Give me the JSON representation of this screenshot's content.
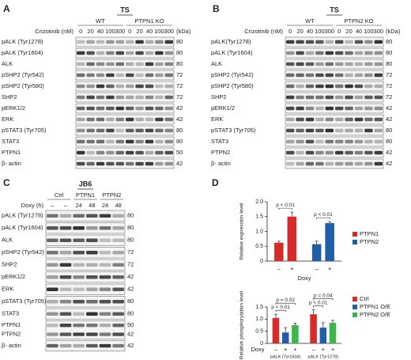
{
  "panels": [
    {
      "letter": "A",
      "title": "TS",
      "treatment": "Crizotinib (nM)",
      "groups": [
        "WT",
        "PTPN1 KO"
      ],
      "lanes": [
        "0",
        "20",
        "40",
        "100",
        "300",
        "0",
        "20",
        "40",
        "100",
        "300"
      ],
      "unit": "(kDa)",
      "rows": [
        {
          "labels": [
            "pALK (Tyr1278)"
          ],
          "kda": [
            "80"
          ]
        },
        {
          "labels": [
            "pALK (Tyr1604)"
          ],
          "kda": [
            "80"
          ]
        },
        {
          "labels": [
            "ALK"
          ],
          "kda": [
            "80"
          ]
        },
        {
          "labels": [
            "pSHP2 (Tyr542)"
          ],
          "kda": [
            "72"
          ]
        },
        {
          "labels": [
            "pSHP2 (Tyr580)"
          ],
          "kda": [
            "72"
          ]
        },
        {
          "labels": [
            "SHP2"
          ],
          "kda": [
            "72"
          ]
        },
        {
          "labels": [
            "pERK1/2"
          ],
          "kda": [
            "42"
          ]
        },
        {
          "labels": [
            "ERK"
          ],
          "kda": [
            "42"
          ]
        },
        {
          "labels": [
            "pSTAT3 (Tyr705)"
          ],
          "kda": [
            "80"
          ]
        },
        {
          "labels": [
            "STAT3"
          ],
          "kda": [
            "80"
          ]
        },
        {
          "labels": [
            "PTPN1"
          ],
          "kda": [
            "50"
          ]
        },
        {
          "labels": [
            "β- actin"
          ],
          "kda": [
            "42"
          ]
        }
      ]
    },
    {
      "letter": "B",
      "title": "TS",
      "treatment": "Crizotinib (nM)",
      "groups": [
        "WT",
        "PTPN2 KO"
      ],
      "lanes": [
        "0",
        "20",
        "40",
        "100",
        "300",
        "0",
        "20",
        "40",
        "100",
        "300"
      ],
      "unit": "(kDa)",
      "rows": [
        {
          "labels": [
            "pALK(Tyr1278)"
          ],
          "kda": [
            "80"
          ]
        },
        {
          "labels": [
            "pALK (Tyr1604)"
          ],
          "kda": [
            "80"
          ]
        },
        {
          "labels": [
            "ALK"
          ],
          "kda": [
            "80"
          ]
        },
        {
          "labels": [
            "pSHP2 (Tyr542)"
          ],
          "kda": [
            "72"
          ]
        },
        {
          "labels": [
            "pSHP2 (Tyr580)"
          ],
          "kda": [
            "72"
          ]
        },
        {
          "labels": [
            "SHP2"
          ],
          "kda": [
            "72"
          ]
        },
        {
          "labels": [
            "pERK1/2"
          ],
          "kda": [
            "42"
          ]
        },
        {
          "labels": [
            "ERK"
          ],
          "kda": [
            "42"
          ]
        },
        {
          "labels": [
            "pSTAT3 (Tyr705)"
          ],
          "kda": [
            "80"
          ]
        },
        {
          "labels": [
            "STAT3"
          ],
          "kda": [
            "80"
          ]
        },
        {
          "labels": [
            "PTPN2"
          ],
          "kda": [
            "42"
          ]
        },
        {
          "labels": [
            "β- actin"
          ],
          "kda": [
            "42"
          ]
        }
      ]
    },
    {
      "letter": "C",
      "title": "JB6",
      "treatment": "Doxy (h)",
      "groups": [
        "Ctrl",
        "PTPN1",
        "PTPN2"
      ],
      "lanes": [
        "–",
        "–",
        "24",
        "48",
        "24",
        "48"
      ],
      "rows": [
        {
          "labels": [
            "pALK (Tyr1278)"
          ],
          "kda": [
            "80"
          ]
        },
        {
          "labels": [
            "pALK (Tyr1604)"
          ],
          "kda": [
            "80"
          ]
        },
        {
          "labels": [
            "ALK"
          ],
          "kda": [
            "80"
          ]
        },
        {
          "labels": [
            "pSHP2 (Tyr542)"
          ],
          "kda": [
            "72"
          ]
        },
        {
          "labels": [
            "SHP2"
          ],
          "kda": [
            "72"
          ]
        },
        {
          "labels": [
            "pERK1/2"
          ],
          "kda": [
            "42"
          ]
        },
        {
          "labels": [
            "ERK"
          ],
          "kda": [
            "42"
          ]
        },
        {
          "labels": [
            "pSTAT3 (Tyr705)"
          ],
          "kda": [
            "80"
          ]
        },
        {
          "labels": [
            "STAT3"
          ],
          "kda": [
            "80"
          ]
        },
        {
          "labels": [
            "PTPN1",
            "PTPN2"
          ],
          "kda": [
            "50",
            "42"
          ]
        },
        {
          "labels": [
            "β- actin"
          ],
          "kda": [
            "42"
          ]
        }
      ]
    }
  ],
  "panel_d": {
    "letter": "D"
  },
  "chart_data": [
    {
      "type": "bar",
      "y_label": "Relative expression level",
      "x_label": "Doxy",
      "categories": [
        "–",
        "+",
        "–",
        "+"
      ],
      "ylim": [
        0,
        2
      ],
      "yticks": [
        0,
        0.5,
        {
          "value": 1,
          "label": "1.0"
        },
        1.5,
        {
          "value": 2,
          "label": "2.0"
        }
      ],
      "series": [
        {
          "name": "PTPN1",
          "color": "#d62b2b",
          "values": [
            0.62,
            1.5,
            null,
            null
          ],
          "errors": [
            0.05,
            0.15,
            null,
            null
          ]
        },
        {
          "name": "PTPN2",
          "color": "#1f5fa8",
          "values": [
            null,
            null,
            0.57,
            1.28
          ],
          "errors": [
            null,
            null,
            0.1,
            0.05
          ]
        }
      ],
      "annotations": [
        "p < 0.01",
        "p < 0.01"
      ]
    },
    {
      "type": "bar",
      "y_label": "Relative phosphorylation level",
      "x_label": "Doxy",
      "categories": [
        "–",
        "+",
        "+",
        "–",
        "+",
        "+"
      ],
      "group_labels": [
        "pALK (Tyr1604)",
        "pALK (Tyr1278)"
      ],
      "ylim": [
        0,
        1.5
      ],
      "yticks": [
        0,
        0.5,
        {
          "value": 1,
          "label": "1.0"
        },
        1.5
      ],
      "series": [
        {
          "name": "Ctrl",
          "color": "#d62b2b",
          "values": [
            1.05,
            null,
            null,
            1.2,
            null,
            null
          ],
          "errors": [
            0.15,
            null,
            null,
            0.18,
            null,
            null
          ]
        },
        {
          "name": "PTPN1 O/E",
          "color": "#1f5fa8",
          "values": [
            null,
            0.45,
            null,
            null,
            0.65,
            null
          ],
          "errors": [
            null,
            0.2,
            null,
            null,
            0.2,
            null
          ]
        },
        {
          "name": "PTPN2 O/E",
          "color": "#3cb54a",
          "values": [
            null,
            null,
            0.75,
            null,
            null,
            0.85
          ],
          "errors": [
            null,
            null,
            0.08,
            null,
            null,
            0.1
          ]
        }
      ],
      "annotations": [
        "p = 0.02",
        "p < 0.01",
        "p = 0.04",
        "p < 0.01"
      ]
    }
  ]
}
